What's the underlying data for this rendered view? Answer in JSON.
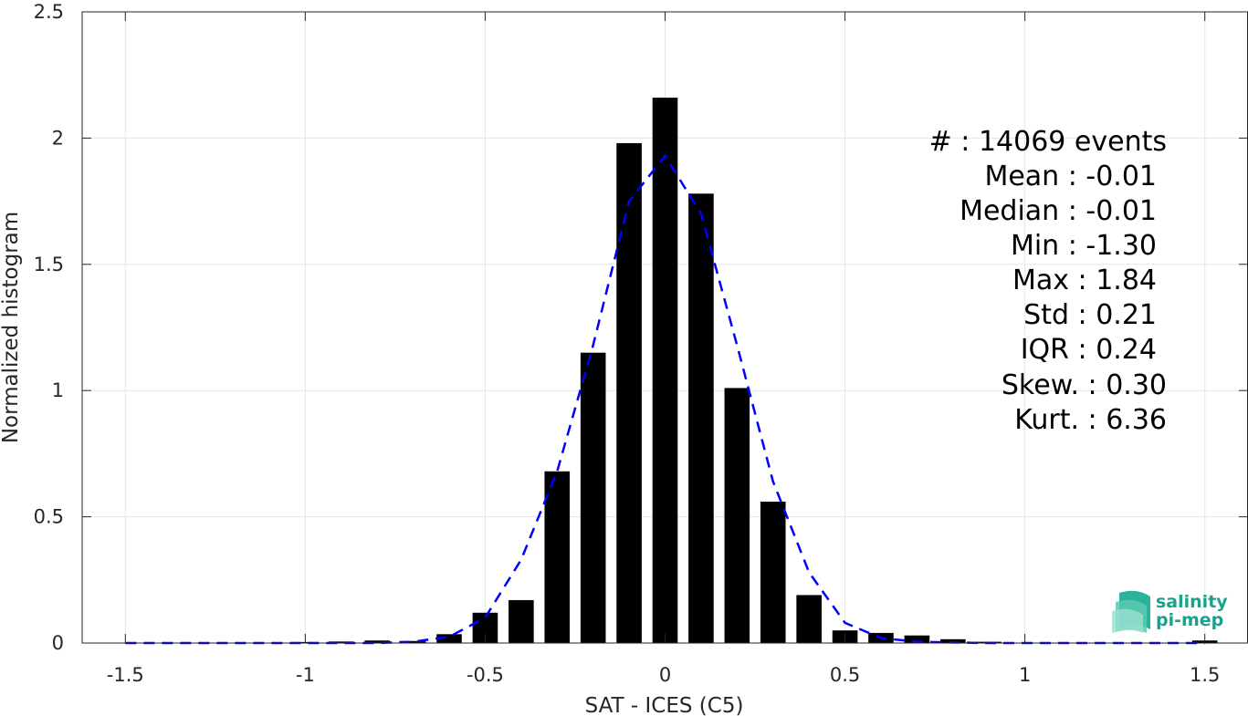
{
  "chart_data": {
    "type": "bar",
    "xlabel": "SAT - ICES (C5)",
    "ylabel": "Normalized histogram",
    "xlim": [
      -1.62,
      1.62
    ],
    "ylim": [
      0,
      2.5
    ],
    "xticks": [
      -1.5,
      -1,
      -0.5,
      0,
      0.5,
      1,
      1.5
    ],
    "xtick_labels": [
      "-1.5",
      "-1",
      "-0.5",
      "0",
      "0.5",
      "1",
      "1.5"
    ],
    "yticks": [
      0,
      0.5,
      1,
      1.5,
      2,
      2.5
    ],
    "ytick_labels": [
      "0",
      "0.5",
      "1",
      "1.5",
      "2",
      "2.5"
    ],
    "grid": true,
    "bar_width": 0.07,
    "bars": {
      "x": [
        -1.5,
        -1.4,
        -1.3,
        -1.2,
        -1.1,
        -1.0,
        -0.9,
        -0.8,
        -0.7,
        -0.6,
        -0.5,
        -0.4,
        -0.3,
        -0.2,
        -0.1,
        0.0,
        0.1,
        0.2,
        0.3,
        0.4,
        0.5,
        0.6,
        0.7,
        0.8,
        0.9,
        1.0,
        1.1,
        1.2,
        1.3,
        1.4,
        1.5
      ],
      "values": [
        0,
        0,
        0,
        0,
        0,
        0.004,
        0.006,
        0.01,
        0.008,
        0.035,
        0.12,
        0.17,
        0.68,
        1.15,
        1.98,
        2.16,
        1.78,
        1.01,
        0.56,
        0.19,
        0.05,
        0.04,
        0.03,
        0.015,
        0.005,
        0,
        0,
        0,
        0,
        0,
        0.01
      ]
    },
    "fit_curve": {
      "style": "dashed",
      "color": "#0000ff",
      "x": [
        -1.5,
        -1.4,
        -1.3,
        -1.2,
        -1.1,
        -1.0,
        -0.9,
        -0.8,
        -0.7,
        -0.6,
        -0.5,
        -0.4,
        -0.3,
        -0.2,
        -0.1,
        0.0,
        0.1,
        0.2,
        0.3,
        0.4,
        0.5,
        0.6,
        0.7,
        0.8,
        0.9,
        1.0,
        1.1,
        1.2,
        1.3,
        1.4,
        1.5
      ],
      "y": [
        0,
        0,
        0,
        0,
        0,
        0,
        0,
        0,
        0.005,
        0.025,
        0.1,
        0.33,
        0.68,
        1.18,
        1.75,
        1.93,
        1.7,
        1.18,
        0.64,
        0.28,
        0.08,
        0.02,
        0.005,
        0.002,
        0,
        0,
        0,
        0,
        0,
        0,
        0
      ]
    }
  },
  "stats": [
    {
      "label": "#  : 14069 events"
    },
    {
      "label": "Mean : -0.01"
    },
    {
      "label": "Median : -0.01"
    },
    {
      "label": "Min : -1.30"
    },
    {
      "label": "Max : 1.84"
    },
    {
      "label": "Std : 0.21"
    },
    {
      "label": "IQR : 0.24"
    },
    {
      "label": "Skew. : 0.30"
    },
    {
      "label": "Kurt. : 6.36"
    }
  ],
  "logo": {
    "line1": "salinity",
    "line2": "pi-mep"
  },
  "colors": {
    "bar": "#000000",
    "fit": "#0000ff",
    "grid": "#e6e6e6",
    "axis": "#262626",
    "logo": "#1aa38c"
  }
}
